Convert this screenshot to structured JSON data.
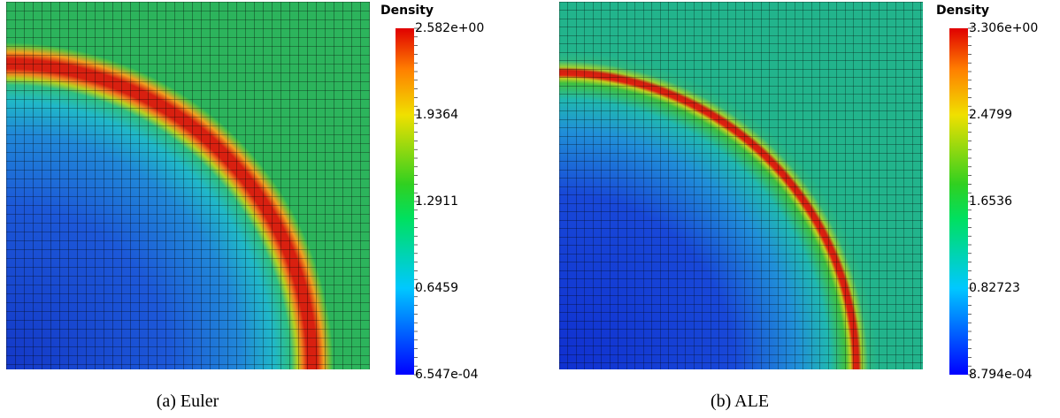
{
  "panels": [
    {
      "caption": "(a) Euler",
      "colorbar": {
        "title": "Density",
        "labels": [
          "2.582e+00",
          "1.9364",
          "1.2911",
          "0.6459",
          "6.547e-04"
        ]
      }
    },
    {
      "caption": "(b) ALE",
      "colorbar": {
        "title": "Density",
        "labels": [
          "3.306e+00",
          "2.4799",
          "1.6536",
          "0.82723",
          "8.794e-04"
        ]
      }
    }
  ]
}
